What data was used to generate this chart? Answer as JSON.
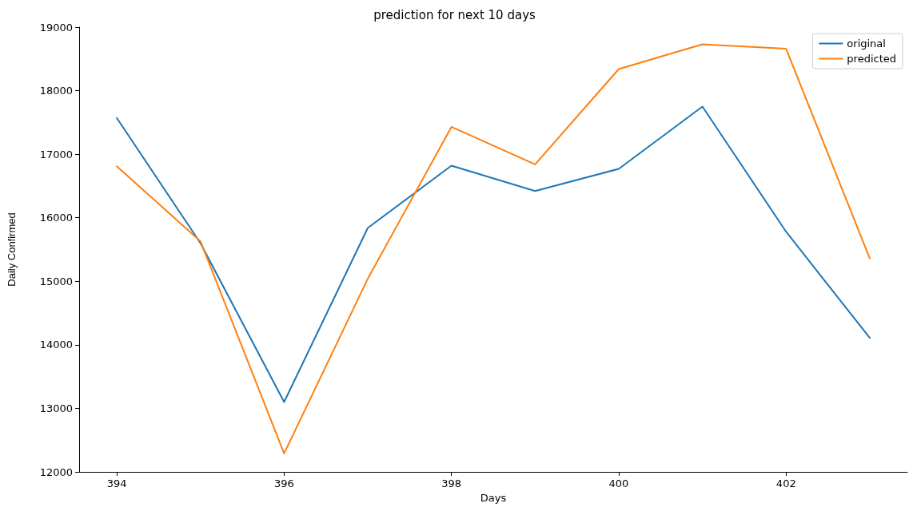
{
  "chart_data": {
    "type": "line",
    "title": "prediction for next 10 days",
    "xlabel": "Days",
    "ylabel": "Daily Confirmed",
    "x": [
      394,
      395,
      396,
      397,
      398,
      399,
      400,
      401,
      402,
      403
    ],
    "series": [
      {
        "name": "original",
        "color": "#1f77b4",
        "values": [
          17570,
          15600,
          13100,
          15840,
          16820,
          16420,
          16770,
          17750,
          15780,
          14110
        ]
      },
      {
        "name": "predicted",
        "color": "#ff7f0e",
        "values": [
          16810,
          15630,
          12290,
          15040,
          17430,
          16840,
          18340,
          18730,
          18660,
          15360
        ]
      }
    ],
    "xlim": [
      393.55,
      403.45
    ],
    "xticks": [
      394,
      396,
      398,
      400,
      402
    ],
    "ylim": [
      12000,
      19000
    ],
    "yticks": [
      12000,
      13000,
      14000,
      15000,
      16000,
      17000,
      18000,
      19000
    ],
    "grid": false,
    "legend": "top right",
    "marker": "none",
    "line_style": "solid"
  }
}
